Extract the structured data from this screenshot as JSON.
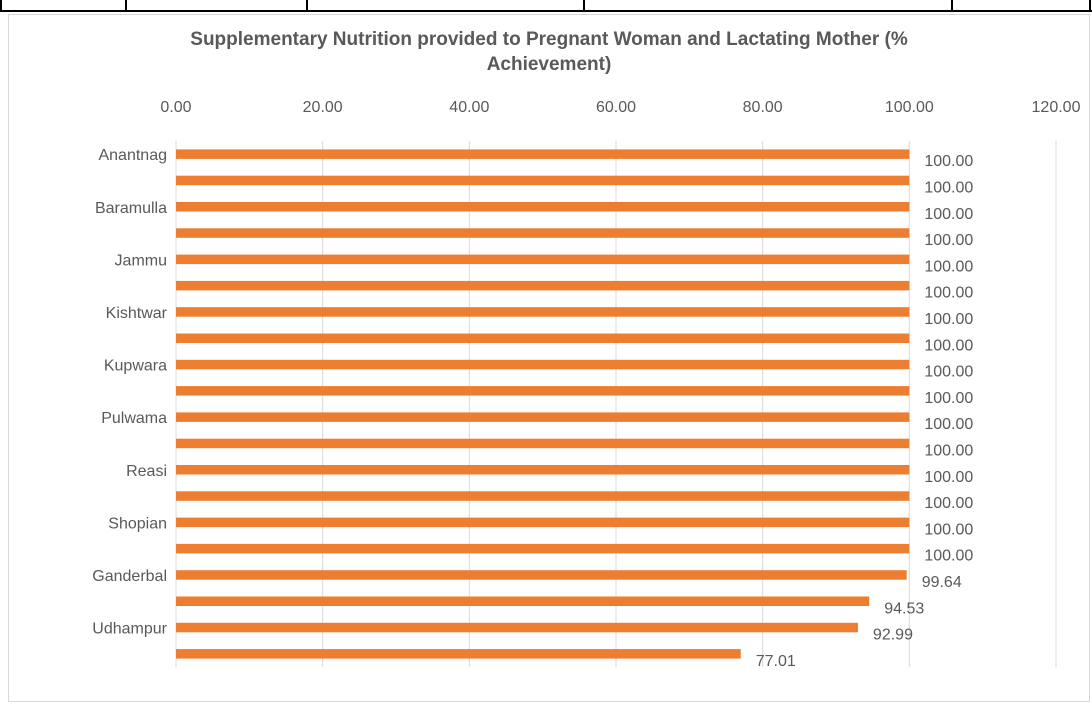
{
  "chart_data": {
    "type": "bar",
    "orientation": "horizontal",
    "title": "Supplementary Nutrition provided to Pregnant Woman and Lactating Mother (% Achievement)",
    "title_line1": "Supplementary Nutrition provided to Pregnant Woman and Lactating Mother (%",
    "title_line2": "Achievement)",
    "xlabel": "",
    "ylabel": "",
    "xlim": [
      0,
      120
    ],
    "x_ticks": [
      "0.00",
      "20.00",
      "40.00",
      "60.00",
      "80.00",
      "100.00",
      "120.00"
    ],
    "x_axis_position": "top",
    "gridlines": true,
    "legend": "none",
    "bar_color": "#ED7D31",
    "grid_color": "#d9d9d9",
    "text_color": "#595959",
    "categories": [
      "Anantnag",
      "",
      "Baramulla",
      "",
      "Jammu",
      "",
      "Kishtwar",
      "",
      "Kupwara",
      "",
      "Pulwama",
      "",
      "Reasi",
      "",
      "Shopian",
      "",
      "Ganderbal",
      "",
      "Udhampur",
      ""
    ],
    "values": [
      100.0,
      100.0,
      100.0,
      100.0,
      100.0,
      100.0,
      100.0,
      100.0,
      100.0,
      100.0,
      100.0,
      100.0,
      100.0,
      100.0,
      100.0,
      100.0,
      99.64,
      94.53,
      92.99,
      77.01
    ],
    "data_labels": [
      "100.00",
      "100.00",
      "100.00",
      "100.00",
      "100.00",
      "100.00",
      "100.00",
      "100.00",
      "100.00",
      "100.00",
      "100.00",
      "100.00",
      "100.00",
      "100.00",
      "100.00",
      "100.00",
      "99.64",
      "94.53",
      "92.99",
      "77.01"
    ]
  }
}
